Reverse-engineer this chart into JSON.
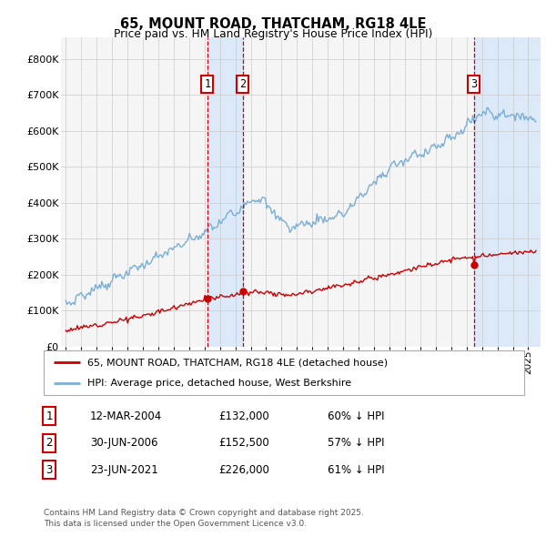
{
  "title": "65, MOUNT ROAD, THATCHAM, RG18 4LE",
  "subtitle": "Price paid vs. HM Land Registry's House Price Index (HPI)",
  "ylim": [
    0,
    860000
  ],
  "yticks": [
    0,
    100000,
    200000,
    300000,
    400000,
    500000,
    600000,
    700000,
    800000
  ],
  "ytick_labels": [
    "£0",
    "£100K",
    "£200K",
    "£300K",
    "£400K",
    "£500K",
    "£600K",
    "£700K",
    "£800K"
  ],
  "xlim_start": 1994.7,
  "xlim_end": 2025.8,
  "xtick_years": [
    1995,
    1996,
    1997,
    1998,
    1999,
    2000,
    2001,
    2002,
    2003,
    2004,
    2005,
    2006,
    2007,
    2008,
    2009,
    2010,
    2011,
    2012,
    2013,
    2014,
    2015,
    2016,
    2017,
    2018,
    2019,
    2020,
    2021,
    2022,
    2023,
    2024,
    2025
  ],
  "transaction1_x": 2004.19,
  "transaction2_x": 2006.49,
  "transaction3_x": 2021.48,
  "transaction1_price": 132000,
  "transaction2_price": 152500,
  "transaction3_price": 226000,
  "shade_color": "#dce9f8",
  "line_red_color": "#cc0000",
  "line_blue_color": "#7aaed6",
  "vline_color": "#cc0000",
  "bg_color": "#f5f5f5",
  "legend_red_label": "65, MOUNT ROAD, THATCHAM, RG18 4LE (detached house)",
  "legend_blue_label": "HPI: Average price, detached house, West Berkshire",
  "table_row1": [
    "1",
    "12-MAR-2004",
    "£132,000",
    "60% ↓ HPI"
  ],
  "table_row2": [
    "2",
    "30-JUN-2006",
    "£152,500",
    "57% ↓ HPI"
  ],
  "table_row3": [
    "3",
    "23-JUN-2021",
    "£226,000",
    "61% ↓ HPI"
  ],
  "footer": "Contains HM Land Registry data © Crown copyright and database right 2025.\nThis data is licensed under the Open Government Licence v3.0."
}
